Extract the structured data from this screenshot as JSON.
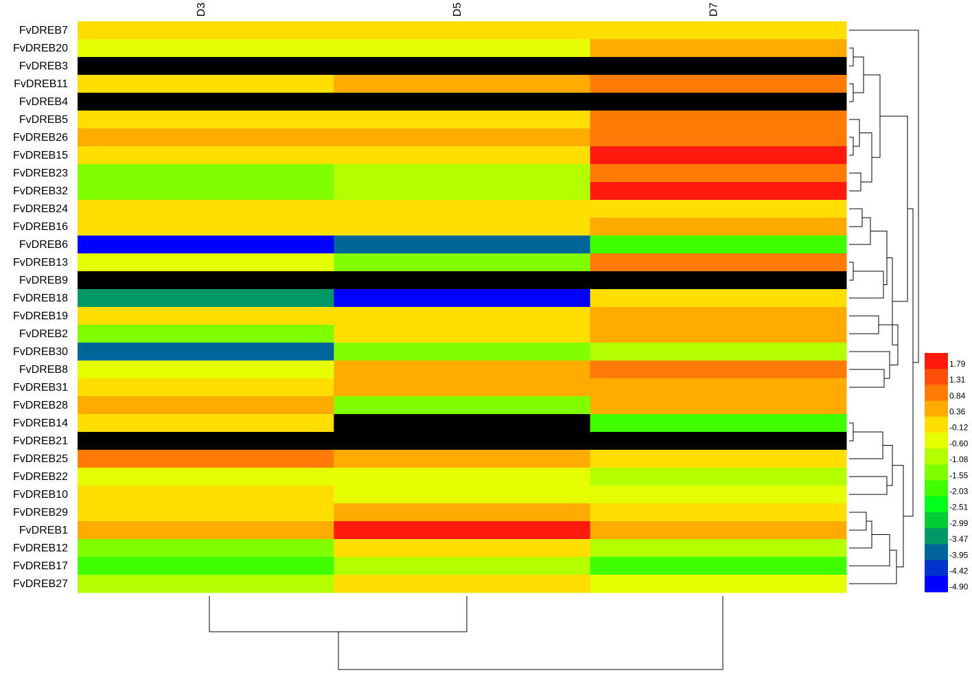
{
  "chart_data": {
    "type": "heatmap",
    "columns": [
      "D3",
      "D5",
      "D7"
    ],
    "rows": [
      "FvDREB7",
      "FvDREB20",
      "FvDREB3",
      "FvDREB11",
      "FvDREB4",
      "FvDREB5",
      "FvDREB26",
      "FvDREB15",
      "FvDREB23",
      "FvDREB32",
      "FvDREB24",
      "FvDREB16",
      "FvDREB6",
      "FvDREB13",
      "FvDREB9",
      "FvDREB18",
      "FvDREB19",
      "FvDREB2",
      "FvDREB30",
      "FvDREB8",
      "FvDREB31",
      "FvDREB28",
      "FvDREB14",
      "FvDREB21",
      "FvDREB25",
      "FvDREB22",
      "FvDREB10",
      "FvDREB29",
      "FvDREB1",
      "FvDREB12",
      "FvDREB17",
      "FvDREB27"
    ],
    "values": [
      [
        -0.12,
        -0.12,
        -0.12
      ],
      [
        -0.6,
        -0.6,
        0.36
      ],
      [
        null,
        null,
        null
      ],
      [
        -0.12,
        0.36,
        0.84
      ],
      [
        null,
        null,
        null
      ],
      [
        -0.12,
        -0.12,
        0.84
      ],
      [
        0.36,
        0.36,
        0.84
      ],
      [
        -0.12,
        -0.12,
        1.79
      ],
      [
        -1.55,
        -1.08,
        0.84
      ],
      [
        -1.55,
        -1.08,
        1.79
      ],
      [
        -0.12,
        -0.12,
        -0.12
      ],
      [
        -0.12,
        -0.12,
        0.36
      ],
      [
        -4.9,
        -3.95,
        -2.03
      ],
      [
        -0.6,
        -1.55,
        0.84
      ],
      [
        null,
        null,
        null
      ],
      [
        -3.47,
        -4.9,
        -0.12
      ],
      [
        -0.12,
        -0.12,
        0.36
      ],
      [
        -1.55,
        -0.12,
        0.36
      ],
      [
        -3.95,
        -1.55,
        -1.08
      ],
      [
        -0.6,
        0.36,
        0.84
      ],
      [
        -0.12,
        0.36,
        0.36
      ],
      [
        0.36,
        -1.55,
        0.36
      ],
      [
        -0.12,
        null,
        -2.03
      ],
      [
        null,
        null,
        null
      ],
      [
        0.84,
        0.36,
        -0.12
      ],
      [
        -0.6,
        -0.6,
        -1.08
      ],
      [
        -0.12,
        -0.6,
        -0.6
      ],
      [
        -0.12,
        0.36,
        -0.12
      ],
      [
        0.36,
        1.79,
        0.36
      ],
      [
        -1.55,
        -0.12,
        -1.08
      ],
      [
        -2.03,
        -1.08,
        -2.03
      ],
      [
        -1.08,
        -0.12,
        -0.6
      ]
    ],
    "na_color": "#000000",
    "colorbar_ticks": [
      1.79,
      1.31,
      0.84,
      0.36,
      -0.12,
      {
        "value": -0.6,
        "label": "-0.60"
      },
      -1.08,
      -1.55,
      -2.03,
      -2.51,
      -2.99,
      -3.47,
      -3.95,
      -4.42,
      {
        "value": -4.9,
        "label": "-4.90"
      }
    ],
    "colorbar_colors": [
      "#ff1a10",
      "#ff4d0a",
      "#ff7b05",
      "#ffab00",
      "#ffde00",
      "#e6ff00",
      "#b3ff00",
      "#80ff00",
      "#40ff00",
      "#00ff1a",
      "#00cc33",
      "#009966",
      "#006699",
      "#0033cc",
      "#0000ff"
    ]
  }
}
